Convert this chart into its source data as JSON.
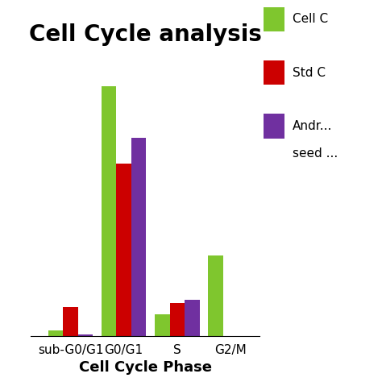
{
  "title": "Cell Cycle analysis",
  "xlabel": "Cell Cycle Phase",
  "categories": [
    "sub-G0/G1",
    "G0/G1",
    "S",
    "G2/M"
  ],
  "series": [
    {
      "label": "Cell C",
      "color": "#7FC62E",
      "values": [
        1.5,
        68,
        6,
        22
      ]
    },
    {
      "label": "Std C",
      "color": "#CC0000",
      "values": [
        8,
        47,
        9,
        0
      ]
    },
    {
      "label": "Andr...\nseed ...",
      "color": "#7030A0",
      "values": [
        0.5,
        54,
        10,
        0
      ]
    }
  ],
  "ylim": [
    0,
    78
  ],
  "bar_width": 0.28,
  "title_fontsize": 20,
  "axis_label_fontsize": 13,
  "legend_fontsize": 11,
  "background_color": "#ffffff",
  "xlim_left": -0.75,
  "xlim_right": 3.55
}
